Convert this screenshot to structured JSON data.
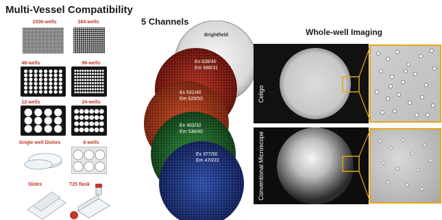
{
  "multi_vessel": {
    "title": "Multi-Vessel Compatibility",
    "labels": {
      "w1536": "1536-wells",
      "w384": "384-wells",
      "w48": "48-wells",
      "w96": "96-wells",
      "w12": "12-wells",
      "w24": "24-wells",
      "dishes": "Single well Dishes",
      "w6": "6-wells",
      "slides": "Slides",
      "t25": "T25 flask"
    }
  },
  "channels": {
    "title": "5 Channels",
    "brightfield": "Brightfield",
    "red": [
      "Ex 628/40",
      "Em 688/31"
    ],
    "orange": [
      "Ex 531/40",
      "Em 629/53"
    ],
    "green": [
      "Ex 483/32",
      "Em 536/40"
    ],
    "blue": [
      "Ex 377/50",
      "Em 470/22"
    ]
  },
  "whole_well": {
    "title": "Whole-well Imaging",
    "celigo_label": "Celigo",
    "conventional_label": "Conventional Microscope"
  },
  "colors": {
    "accent_red": "#c0392b",
    "zoom_box": "#e8a317"
  }
}
